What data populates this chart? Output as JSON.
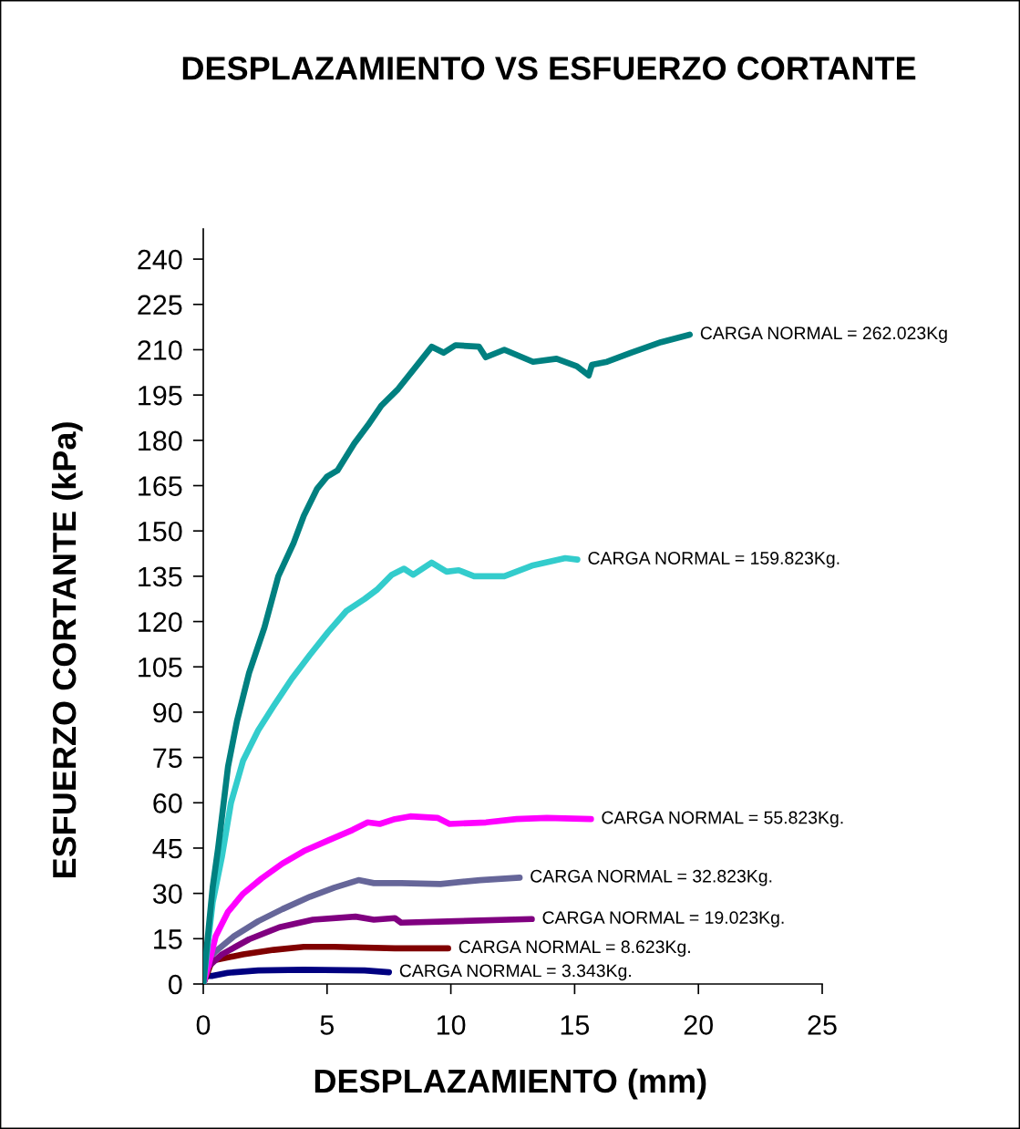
{
  "chart_data": {
    "type": "line",
    "title": "DESPLAZAMIENTO VS ESFUERZO CORTANTE",
    "xlabel": "DESPLAZAMIENTO (mm)",
    "ylabel": "ESFUERZO CORTANTE (kPa)",
    "xlim": [
      0,
      25
    ],
    "xticks": [
      0,
      5,
      10,
      15,
      20,
      25
    ],
    "ylim": [
      0,
      250
    ],
    "yticks": [
      0,
      15,
      30,
      45,
      60,
      75,
      90,
      105,
      120,
      135,
      150,
      165,
      180,
      195,
      210,
      225,
      240
    ],
    "series": [
      {
        "name": "CARGA NORMAL = 262.023Kg",
        "color": "#008080",
        "x": [
          0,
          0.2,
          0.38,
          0.6,
          0.78,
          1.0,
          1.36,
          1.85,
          2.47,
          3.03,
          3.65,
          4.06,
          4.6,
          5.0,
          5.42,
          6.1,
          6.65,
          7.19,
          7.87,
          8.55,
          9.23,
          9.71,
          10.19,
          11.14,
          11.41,
          12.16,
          13.32,
          14.27,
          15.09,
          15.57,
          15.7,
          16.31,
          17.27,
          18.49,
          19.65
        ],
        "values": [
          0,
          17,
          32,
          45,
          57,
          72,
          87,
          103,
          118,
          135,
          146,
          155,
          164,
          168,
          170,
          179,
          185,
          191.5,
          197,
          204,
          211,
          209,
          211.5,
          211,
          207.5,
          210,
          206,
          207,
          204.5,
          201.5,
          205,
          206,
          209,
          212.5,
          215
        ]
      },
      {
        "name": "CARGA NORMAL = 159.823Kg.",
        "color": "#33cccc",
        "x": [
          0,
          0.14,
          0.38,
          0.75,
          1.12,
          1.61,
          2.22,
          2.84,
          3.57,
          4.31,
          5.04,
          5.78,
          6.52,
          7.01,
          7.62,
          8.11,
          8.48,
          9.22,
          9.83,
          10.32,
          10.94,
          12.16,
          13.27,
          14.62,
          15.11
        ],
        "values": [
          0,
          10,
          27,
          42,
          60,
          74,
          84,
          92,
          101,
          109,
          116.5,
          123.5,
          127.5,
          130.5,
          135.5,
          137.5,
          135.5,
          139.5,
          136.5,
          137,
          135,
          135,
          138.5,
          141,
          140.5
        ]
      },
      {
        "name": "CARGA NORMAL = 55.823Kg.",
        "color": "#ff00ff",
        "x": [
          0,
          0.2,
          0.5,
          0.99,
          1.61,
          2.35,
          3.2,
          4.06,
          5.04,
          6.03,
          6.64,
          7.13,
          7.74,
          8.36,
          9.46,
          9.95,
          11.42,
          12.65,
          13.88,
          15.66
        ],
        "values": [
          0,
          5.7,
          15.8,
          23.8,
          29.9,
          34.9,
          39.9,
          44,
          47.5,
          51,
          53.5,
          53,
          54.6,
          55.5,
          55,
          53,
          53.5,
          54.6,
          55,
          54.6
        ]
      },
      {
        "name": "CARGA NORMAL = 32.823Kg.",
        "color": "#666699",
        "x": [
          0,
          0.14,
          0.5,
          1.24,
          2.22,
          3.2,
          4.31,
          5.29,
          6.27,
          6.89,
          7.99,
          9.58,
          11.18,
          12.78
        ],
        "values": [
          0,
          7.8,
          10.8,
          15.8,
          20.8,
          24.8,
          28.9,
          31.9,
          34.4,
          33.4,
          33.4,
          33.1,
          34.4,
          35.2
        ]
      },
      {
        "name": "CARGA NORMAL = 19.023Kg.",
        "color": "#800080",
        "x": [
          0,
          0.2,
          0.75,
          1.85,
          3.08,
          4.43,
          6.15,
          6.89,
          7.74,
          7.99,
          10.2,
          13.27
        ],
        "values": [
          0,
          5.7,
          9.8,
          14.8,
          18.8,
          21.3,
          22.3,
          21.3,
          21.8,
          20.3,
          20.8,
          21.5
        ]
      },
      {
        "name": "CARGA NORMAL = 8.623Kg.",
        "color": "#800000",
        "x": [
          0,
          0.26,
          0.38,
          1.61,
          2.84,
          4.06,
          5.29,
          7.74,
          9.89
        ],
        "values": [
          0,
          5.7,
          7.8,
          9.8,
          11.3,
          12.3,
          12.3,
          11.8,
          11.8
        ]
      },
      {
        "name": "CARGA NORMAL = 3.343Kg.",
        "color": "#000080",
        "x": [
          0,
          0.38,
          0.99,
          2.22,
          4.06,
          6.52,
          7.5
        ],
        "values": [
          2.7,
          2.7,
          3.7,
          4.5,
          4.7,
          4.5,
          3.9
        ]
      }
    ]
  }
}
